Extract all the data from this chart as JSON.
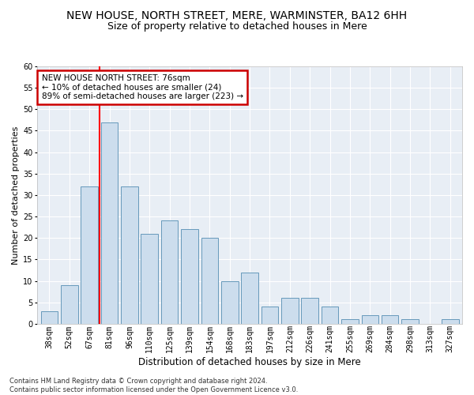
{
  "title": "NEW HOUSE, NORTH STREET, MERE, WARMINSTER, BA12 6HH",
  "subtitle": "Size of property relative to detached houses in Mere",
  "xlabel": "Distribution of detached houses by size in Mere",
  "ylabel": "Number of detached properties",
  "categories": [
    "38sqm",
    "52sqm",
    "67sqm",
    "81sqm",
    "96sqm",
    "110sqm",
    "125sqm",
    "139sqm",
    "154sqm",
    "168sqm",
    "183sqm",
    "197sqm",
    "212sqm",
    "226sqm",
    "241sqm",
    "255sqm",
    "269sqm",
    "284sqm",
    "298sqm",
    "313sqm",
    "327sqm"
  ],
  "values": [
    3,
    9,
    32,
    47,
    32,
    21,
    24,
    22,
    20,
    10,
    12,
    4,
    6,
    6,
    4,
    1,
    2,
    2,
    1,
    0,
    1
  ],
  "bar_color": "#ccdded",
  "bar_edge_color": "#6699bb",
  "red_line_index": 2.5,
  "annotation_text": "NEW HOUSE NORTH STREET: 76sqm\n← 10% of detached houses are smaller (24)\n89% of semi-detached houses are larger (223) →",
  "annotation_box_color": "#ffffff",
  "annotation_box_edge": "#cc0000",
  "ylim": [
    0,
    60
  ],
  "yticks": [
    0,
    5,
    10,
    15,
    20,
    25,
    30,
    35,
    40,
    45,
    50,
    55,
    60
  ],
  "footer": "Contains HM Land Registry data © Crown copyright and database right 2024.\nContains public sector information licensed under the Open Government Licence v3.0.",
  "background_color": "#ffffff",
  "plot_background": "#e8eef5",
  "grid_color": "#ffffff",
  "title_fontsize": 10,
  "subtitle_fontsize": 9,
  "tick_fontsize": 7,
  "ylabel_fontsize": 8,
  "xlabel_fontsize": 8.5,
  "footer_fontsize": 6
}
